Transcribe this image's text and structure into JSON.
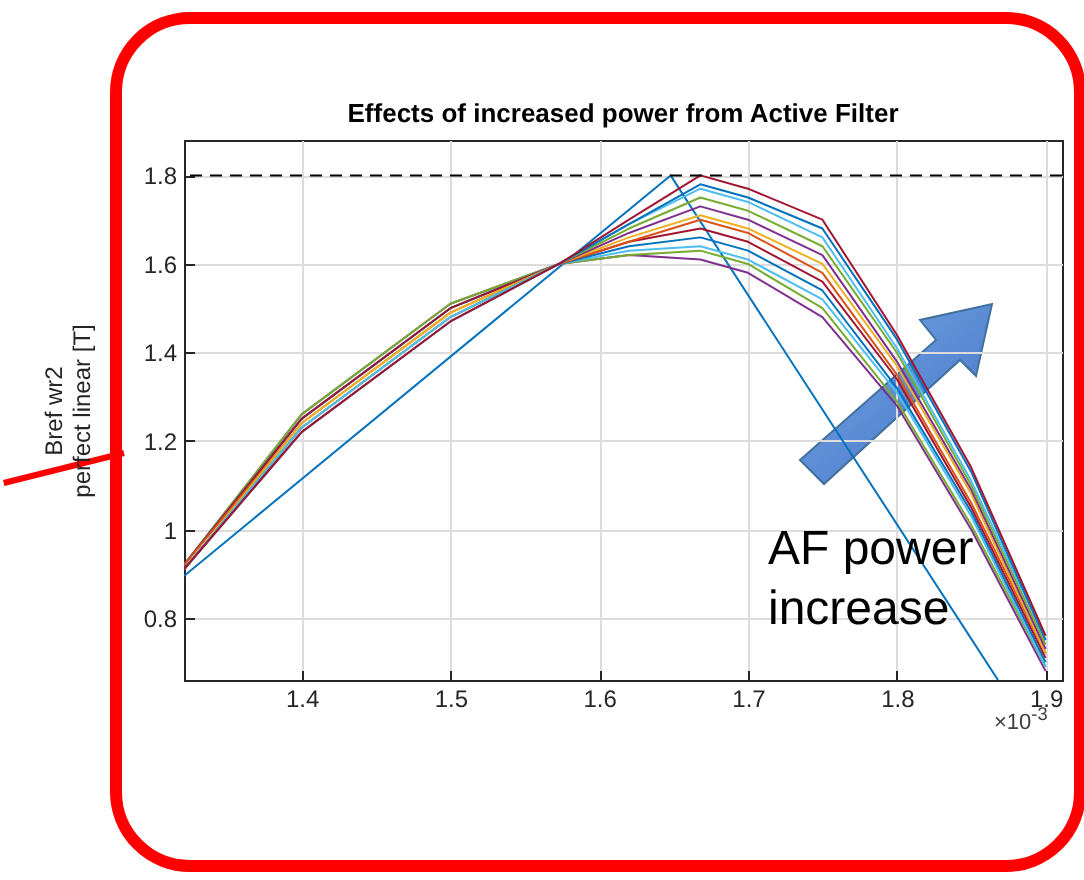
{
  "chart_data": {
    "type": "line",
    "title": "Effects of increased power from Active Filter",
    "ylabel": "Bref wr2\nperfect linear [T]",
    "annotations": [
      "AF power increase",
      "×10$^{-3}$"
    ],
    "xlim": [
      1.321,
      1.911
    ],
    "xticks": [
      1.4,
      1.5,
      1.6,
      1.7,
      1.8,
      1.9
    ],
    "ylim": [
      0.66,
      1.88
    ],
    "yticks": [
      0.8,
      {
        "value": 1,
        "label": "1"
      },
      1.2,
      1.4,
      1.6,
      1.8
    ],
    "grid": true,
    "line_style": "solid",
    "marker": "none",
    "ref_lines": [
      {
        "axis": "y",
        "value": 1.8,
        "color": "#000000",
        "line_style": "dashed"
      }
    ],
    "x": [
      1.321,
      1.4,
      1.5,
      1.573,
      1.62,
      1.668,
      1.7,
      1.75,
      1.8,
      1.85,
      1.9
    ],
    "series": [
      {
        "color": "#0072bd",
        "x": [
          1.321,
          1.648,
          1.672,
          1.868
        ],
        "values": [
          0.895,
          1.8,
          1.675,
          0.66
        ]
      },
      {
        "color": "#7e2f8e",
        "values": [
          0.92,
          1.26,
          1.51,
          1.6,
          1.62,
          1.61,
          1.58,
          1.48,
          1.28,
          1.0,
          0.68
        ]
      },
      {
        "color": "#77ac30",
        "values": [
          0.92,
          1.26,
          1.51,
          1.6,
          1.62,
          1.63,
          1.6,
          1.5,
          1.29,
          1.01,
          0.69
        ]
      },
      {
        "color": "#4dbeee",
        "values": [
          0.92,
          1.25,
          1.5,
          1.6,
          1.63,
          1.64,
          1.61,
          1.52,
          1.31,
          1.03,
          0.69
        ]
      },
      {
        "color": "#0072bd",
        "values": [
          0.92,
          1.25,
          1.5,
          1.6,
          1.64,
          1.66,
          1.63,
          1.54,
          1.32,
          1.04,
          0.7
        ]
      },
      {
        "color": "#a2142f",
        "values": [
          0.92,
          1.25,
          1.5,
          1.6,
          1.65,
          1.68,
          1.65,
          1.56,
          1.34,
          1.05,
          0.71
        ]
      },
      {
        "color": "#d95319",
        "values": [
          0.92,
          1.24,
          1.49,
          1.6,
          1.65,
          1.7,
          1.67,
          1.58,
          1.35,
          1.06,
          0.72
        ]
      },
      {
        "color": "#edb120",
        "values": [
          0.91,
          1.24,
          1.49,
          1.6,
          1.66,
          1.71,
          1.68,
          1.6,
          1.37,
          1.08,
          0.72
        ]
      },
      {
        "color": "#7e2f8e",
        "values": [
          0.91,
          1.23,
          1.48,
          1.6,
          1.67,
          1.73,
          1.7,
          1.62,
          1.38,
          1.09,
          0.73
        ]
      },
      {
        "color": "#77ac30",
        "values": [
          0.91,
          1.23,
          1.48,
          1.6,
          1.68,
          1.75,
          1.72,
          1.64,
          1.4,
          1.1,
          0.74
        ]
      },
      {
        "color": "#4dbeee",
        "values": [
          0.91,
          1.23,
          1.48,
          1.6,
          1.69,
          1.77,
          1.74,
          1.66,
          1.41,
          1.11,
          0.75
        ]
      },
      {
        "color": "#0072bd",
        "values": [
          0.91,
          1.22,
          1.47,
          1.6,
          1.69,
          1.78,
          1.75,
          1.68,
          1.43,
          1.13,
          0.75
        ]
      },
      {
        "color": "#a2142f",
        "values": [
          0.91,
          1.22,
          1.47,
          1.6,
          1.7,
          1.8,
          1.77,
          1.7,
          1.44,
          1.14,
          0.76
        ]
      }
    ]
  }
}
